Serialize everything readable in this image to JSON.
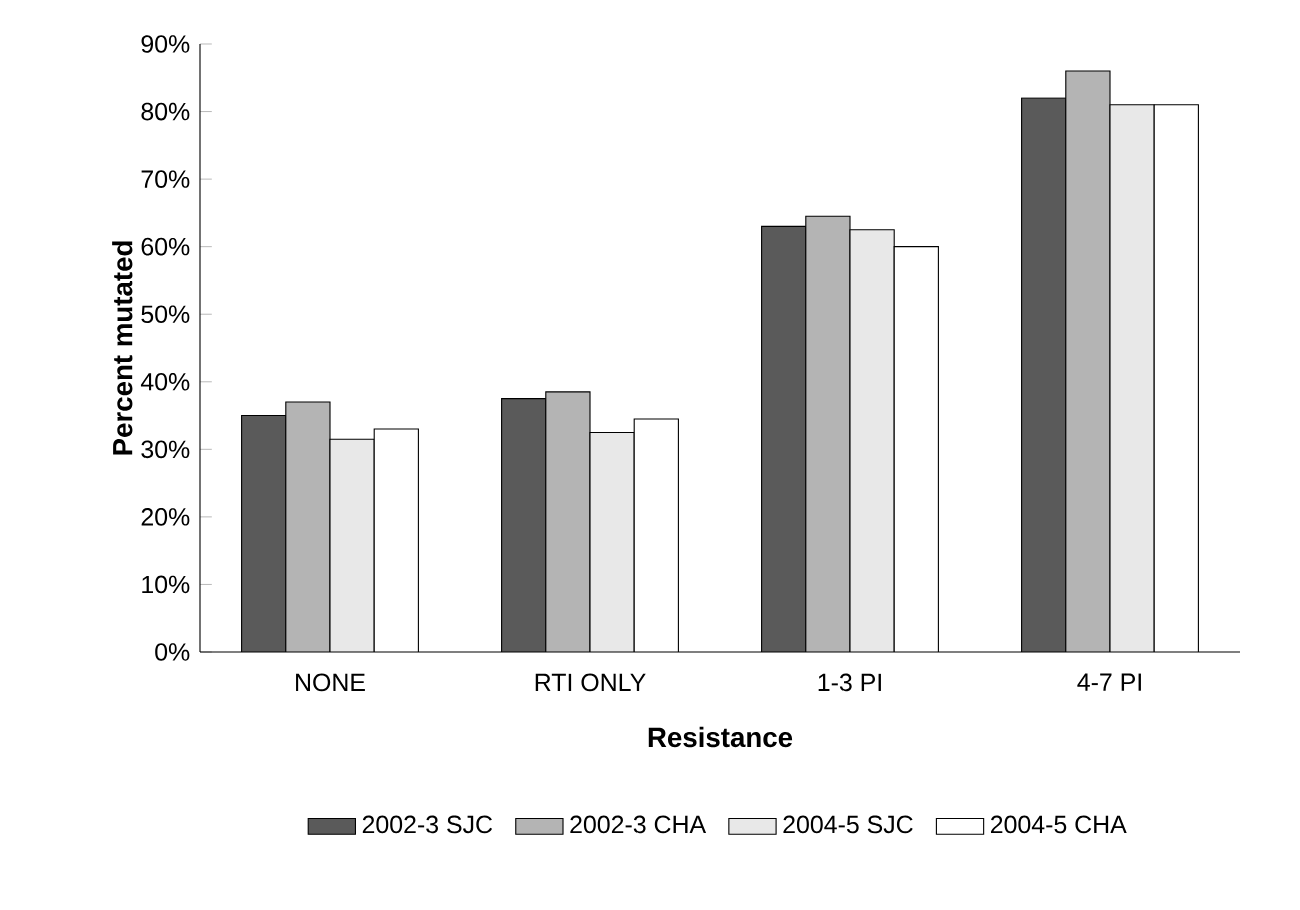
{
  "chart_data": {
    "type": "bar",
    "xlabel": "Resistance",
    "ylabel": "Percent mutated",
    "categories": [
      "NONE",
      "RTI ONLY",
      "1-3 PI",
      "4-7 PI"
    ],
    "series": [
      {
        "name": "2002-3 SJC",
        "color": "#5a5a5a",
        "values": [
          35,
          37.5,
          63,
          82
        ]
      },
      {
        "name": "2002-3 CHA",
        "color": "#b4b4b4",
        "values": [
          37,
          38.5,
          64.5,
          86
        ]
      },
      {
        "name": "2004-5 SJC",
        "color": "#e8e8e8",
        "values": [
          31.5,
          32.5,
          62.5,
          81
        ]
      },
      {
        "name": "2004-5 CHA",
        "color": "#ffffff",
        "values": [
          33,
          34.5,
          60,
          81
        ]
      }
    ],
    "ylim": [
      0,
      90
    ],
    "yticks": [
      {
        "value": 0,
        "label": "0%"
      },
      {
        "value": 10,
        "label": "10%"
      },
      {
        "value": 20,
        "label": "20%"
      },
      {
        "value": 30,
        "label": "30%"
      },
      {
        "value": 40,
        "label": "40%"
      },
      {
        "value": 50,
        "label": "50%"
      },
      {
        "value": 60,
        "label": "60%"
      },
      {
        "value": 70,
        "label": "70%"
      },
      {
        "value": 80,
        "label": "80%"
      },
      {
        "value": 90,
        "label": "90%"
      }
    ],
    "grid": false,
    "legend": "bottom"
  }
}
